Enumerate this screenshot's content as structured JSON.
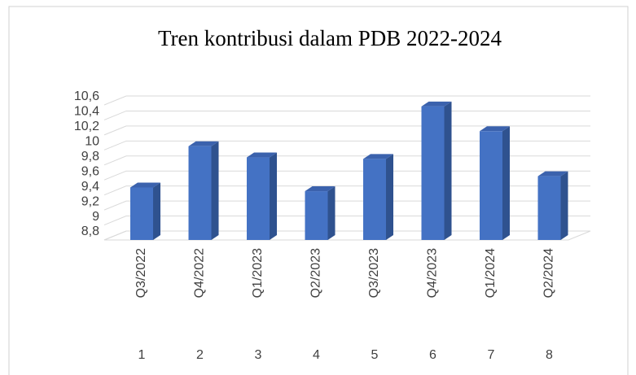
{
  "chart_data": {
    "type": "bar3d",
    "title": "Tren kontribusi dalam PDB 2022-2024",
    "categories": [
      "Q3/2022",
      "Q4/2022",
      "Q1/2023",
      "Q2/2023",
      "Q3/2023",
      "Q4/2023",
      "Q1/2024",
      "Q2/2024"
    ],
    "category_numbers": [
      1,
      2,
      3,
      4,
      5,
      6,
      7,
      8
    ],
    "values": [
      9.5,
      10.05,
      9.9,
      9.45,
      9.88,
      10.58,
      10.25,
      9.65
    ],
    "color": "#4472c4",
    "ylim": [
      8.8,
      10.6
    ],
    "yticks": [
      {
        "value": 8.8,
        "label": "8,8"
      },
      9,
      {
        "value": 9.2,
        "label": "9,2"
      },
      {
        "value": 9.4,
        "label": "9,4"
      },
      {
        "value": 9.6,
        "label": "9,6"
      },
      {
        "value": 9.8,
        "label": "9,8"
      },
      10,
      {
        "value": 10.2,
        "label": "10,2"
      },
      {
        "value": 10.4,
        "label": "10,4"
      },
      {
        "value": 10.6,
        "label": "10,6"
      }
    ],
    "grid": true
  }
}
